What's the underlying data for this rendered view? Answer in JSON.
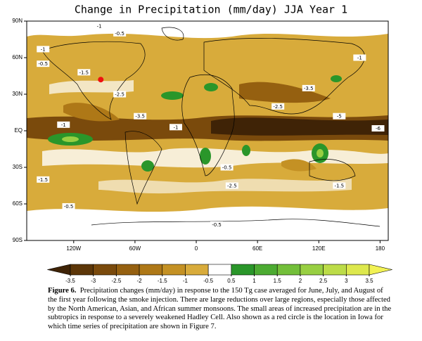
{
  "chart_data": {
    "type": "map",
    "title": "Change in Precipitation (mm/day) JJA Year 1",
    "xlim": [
      -166,
      188
    ],
    "ylim": [
      -90,
      90
    ],
    "xticks": [
      {
        "value": -120,
        "label": "120W"
      },
      {
        "value": -60,
        "label": "60W"
      },
      0,
      {
        "value": 60,
        "label": "60E"
      },
      {
        "value": 120,
        "label": "120E"
      },
      180
    ],
    "yticks": [
      {
        "value": 90,
        "label": "90N"
      },
      {
        "value": 60,
        "label": "60N"
      },
      {
        "value": 30,
        "label": "30N"
      },
      {
        "value": 0,
        "label": "EQ"
      },
      {
        "value": -30,
        "label": "30S"
      },
      {
        "value": -60,
        "label": "60S"
      },
      {
        "value": -90,
        "label": "90S"
      }
    ],
    "marker": {
      "lon": -93.5,
      "lat": 42,
      "color": "#ee1111"
    },
    "contour_labels": [
      {
        "text": "-1",
        "lon": -95,
        "lat": 86
      },
      {
        "text": "-0.5",
        "lon": -75,
        "lat": 80
      },
      {
        "text": "-1",
        "lon": -150,
        "lat": 67
      },
      {
        "text": "-0.5",
        "lon": -150,
        "lat": 55
      },
      {
        "text": "-1.5",
        "lon": -110,
        "lat": 48
      },
      {
        "text": "-2.5",
        "lon": -75,
        "lat": 30
      },
      {
        "text": "-1",
        "lon": -130,
        "lat": 5
      },
      {
        "text": "-3.5",
        "lon": -55,
        "lat": 12
      },
      {
        "text": "-1",
        "lon": -20,
        "lat": 3
      },
      {
        "text": "-2.5",
        "lon": 80,
        "lat": 20
      },
      {
        "text": "-3.5",
        "lon": 110,
        "lat": 35
      },
      {
        "text": "-5",
        "lon": 140,
        "lat": 12
      },
      {
        "text": "-6",
        "lon": 178,
        "lat": 2
      },
      {
        "text": "-1.5",
        "lon": -150,
        "lat": -40
      },
      {
        "text": "-0.5",
        "lon": 30,
        "lat": -30
      },
      {
        "text": "-2.5",
        "lon": 35,
        "lat": -45
      },
      {
        "text": "-0.5",
        "lon": -125,
        "lat": -62
      },
      {
        "text": "-0.5",
        "lon": 20,
        "lat": -77
      },
      {
        "text": "-1.5",
        "lon": 140,
        "lat": -45
      },
      {
        "text": "-1",
        "lon": 160,
        "lat": 60
      }
    ],
    "colorbar": {
      "ticks": [
        -3.5,
        -3,
        -2.5,
        -2,
        -1.5,
        -1,
        -0.5,
        0.5,
        1,
        1.5,
        2,
        2.5,
        3,
        3.5
      ],
      "colors": [
        "#3f2306",
        "#5c3608",
        "#7a4a0c",
        "#956010",
        "#ae7817",
        "#c49124",
        "#d8ab3b",
        "#ffffff",
        "#2a962a",
        "#4cab32",
        "#73bf3a",
        "#98cf42",
        "#bcdc48",
        "#dde84d",
        "#f2f254"
      ]
    },
    "caption": {
      "label": "Figure 6.",
      "text": "Precipitation changes (mm/day) in response to the 150 Tg case averaged for June, July, and August of the first year following the smoke injection. There are large reductions over large regions, especially those affected by the North American, Asian, and African summer monsoons. The small areas of increased precipitation are in the subtropics in response to a severely weakened Hadley Cell. Also shown as a red circle is the location in Iowa for which time series of precipitation are shown in Figure 7."
    }
  }
}
